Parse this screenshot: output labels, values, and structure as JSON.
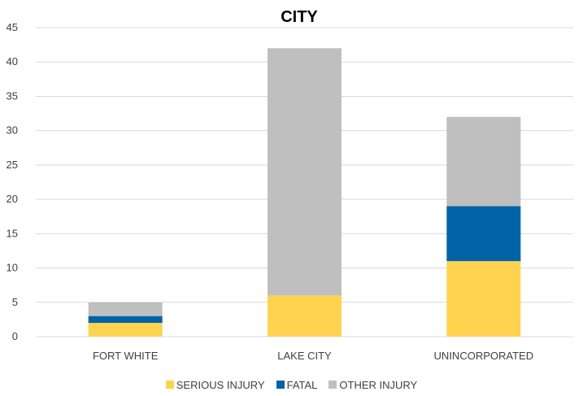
{
  "chart_data": {
    "type": "bar",
    "stacked": true,
    "title": "CITY",
    "categories": [
      "FORT WHITE",
      "LAKE CITY",
      "UNINCORPORATED"
    ],
    "series": [
      {
        "name": "SERIOUS INJURY",
        "color": "#FFD34E",
        "values": [
          2,
          6,
          11
        ]
      },
      {
        "name": "FATAL",
        "color": "#0063A7",
        "values": [
          1,
          0,
          8
        ]
      },
      {
        "name": "OTHER INJURY",
        "color": "#BFBFBF",
        "values": [
          2,
          36,
          13
        ]
      }
    ],
    "ylim": [
      0,
      45
    ],
    "yticks": [
      "0",
      "5",
      "10",
      "15",
      "20",
      "25",
      "30",
      "35",
      "40",
      "45"
    ],
    "grid": true,
    "legend_position": "bottom"
  }
}
